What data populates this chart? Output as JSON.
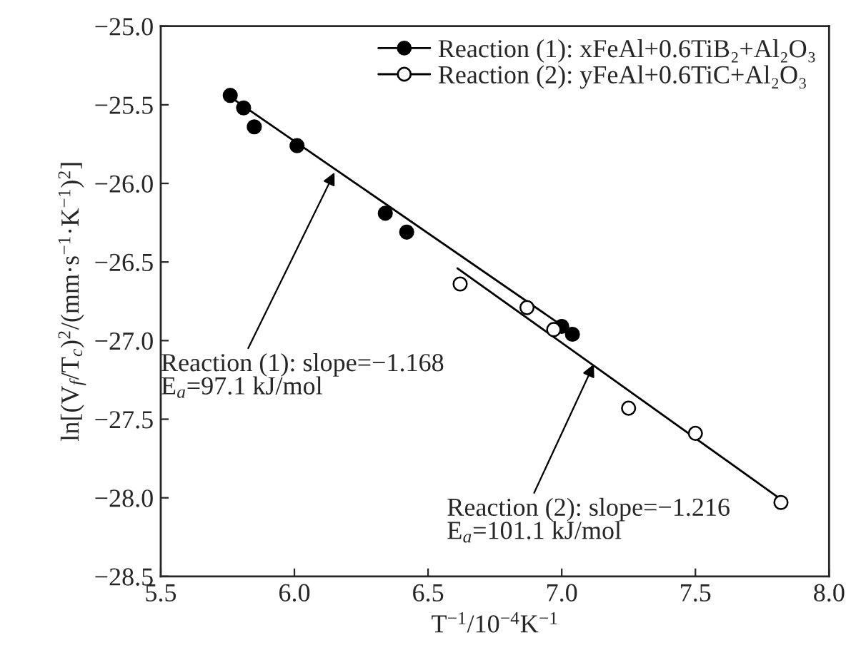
{
  "chart_data": {
    "type": "scatter",
    "xlabel": "T$^{−1}$/10$^{−4}$K$^{−1}$",
    "ylabel": "ln[(V$_{f}$/T$_{c}$)$^{2}$/(mm·s$^{−1}$·K$^{−1}$)$^{2}$]",
    "xlim": [
      5.5,
      8.0
    ],
    "xticks": [
      {
        "value": 5.5,
        "label": "5.5"
      },
      {
        "value": 6.0,
        "label": "6.0"
      },
      {
        "value": 6.5,
        "label": "6.5"
      },
      {
        "value": 7.0,
        "label": "7.0"
      },
      {
        "value": 7.5,
        "label": "7.5"
      },
      {
        "value": 8.0,
        "label": "8.0"
      }
    ],
    "ylim": [
      -28.5,
      -25.0
    ],
    "yticks": [
      {
        "value": -28.5,
        "label": "−28.5"
      },
      {
        "value": -28.0,
        "label": "−28.0"
      },
      {
        "value": -27.5,
        "label": "−27.5"
      },
      {
        "value": -27.0,
        "label": "−27.0"
      },
      {
        "value": -26.5,
        "label": "−26.5"
      },
      {
        "value": -26.0,
        "label": "−26.0"
      },
      {
        "value": -25.5,
        "label": "−25.5"
      },
      {
        "value": -25.0,
        "label": "−25.0"
      }
    ],
    "grid": false,
    "legend": "top right",
    "marker": "circle",
    "series": [
      {
        "name": "Reaction (1): xFeAl+0.6TiB₂+Al₂O₃",
        "color": "#000000",
        "x": [
          5.76,
          5.81,
          5.85,
          6.01,
          6.34,
          6.42,
          7.0,
          7.04
        ],
        "values": [
          -25.44,
          -25.52,
          -25.64,
          -25.76,
          -26.19,
          -26.31,
          -26.91,
          -26.96
        ]
      },
      {
        "name": "Reaction (2): yFeAl+0.6TiC+Al₂O₃",
        "color": "#ffffff",
        "x": [
          6.62,
          6.87,
          6.97,
          7.25,
          7.5,
          7.82
        ],
        "values": [
          -26.64,
          -26.79,
          -26.93,
          -27.43,
          -27.59,
          -28.03
        ]
      },
      {
        "type": "line",
        "marker": "none",
        "color": "#000000",
        "x": [
          5.76,
          7.04
        ],
        "values": [
          -25.45,
          -26.95
        ]
      },
      {
        "type": "line",
        "marker": "none",
        "color": "#000000",
        "x": [
          6.61,
          7.82
        ],
        "values": [
          -26.54,
          -28.01
        ]
      }
    ],
    "annotations": [
      {
        "text": "Reaction (1): slope=−1.168\nE$_{a}$=97.1 kJ/mol",
        "x": 6.15,
        "y": -25.93
      },
      {
        "text": "Reaction (2): slope=−1.216\nE$_{a}$=101.1 kJ/mol",
        "x": 7.12,
        "y": -27.15
      }
    ]
  }
}
